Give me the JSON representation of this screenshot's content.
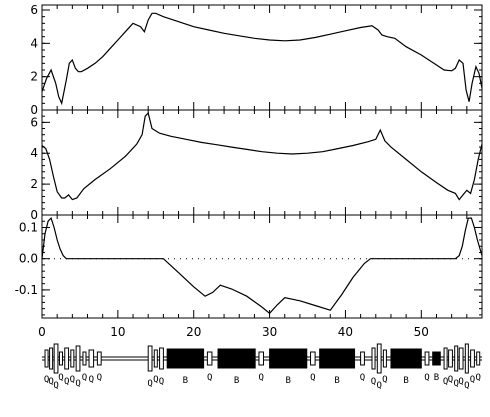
{
  "chart_data": [
    {
      "type": "line",
      "panel": "top",
      "x_range": [
        0,
        58
      ],
      "ylim": [
        0,
        6.3
      ],
      "y_ticks": [
        "0",
        "2",
        "4",
        "6"
      ],
      "series": [
        {
          "x": [
            0,
            0.6,
            1.2,
            1.8,
            2.2,
            2.6,
            3.2,
            3.6,
            4.0,
            4.4,
            4.8,
            5.2,
            6,
            7,
            8,
            9,
            10,
            11,
            12,
            13,
            13.5,
            14,
            14.5,
            15,
            16,
            18,
            20,
            22,
            24,
            26,
            28,
            30,
            32,
            34,
            36,
            38,
            40,
            42,
            43.5,
            44.3,
            44.8,
            45.5,
            46.5,
            48,
            50,
            52,
            53,
            54,
            54.5,
            55,
            55.5,
            55.9,
            56.3,
            56.7,
            57.2,
            57.6,
            58
          ],
          "y": [
            1.1,
            1.9,
            2.4,
            1.6,
            0.8,
            0.4,
            1.8,
            2.8,
            3.0,
            2.5,
            2.3,
            2.3,
            2.5,
            2.8,
            3.2,
            3.7,
            4.2,
            4.7,
            5.2,
            5.0,
            4.7,
            5.4,
            5.8,
            5.8,
            5.6,
            5.3,
            5.0,
            4.8,
            4.6,
            4.45,
            4.3,
            4.2,
            4.15,
            4.2,
            4.35,
            4.55,
            4.75,
            4.95,
            5.05,
            4.8,
            4.5,
            4.4,
            4.3,
            3.8,
            3.3,
            2.7,
            2.4,
            2.35,
            2.5,
            3.0,
            2.8,
            1.2,
            0.5,
            1.6,
            2.6,
            2.2,
            1.3
          ]
        }
      ]
    },
    {
      "type": "line",
      "panel": "middle",
      "x_range": [
        0,
        58
      ],
      "ylim": [
        0,
        6.8
      ],
      "y_ticks": [
        "0",
        "2",
        "4",
        "6"
      ],
      "series": [
        {
          "x": [
            0,
            0.5,
            1.0,
            1.5,
            2.0,
            2.6,
            3.0,
            3.5,
            4.0,
            4.6,
            5.5,
            7,
            9,
            11,
            12.5,
            13.2,
            13.6,
            14.0,
            14.5,
            15.5,
            17,
            19,
            21,
            23,
            25,
            27,
            29,
            31,
            33,
            35,
            37,
            39,
            41,
            43,
            44,
            44.6,
            45.2,
            46,
            48,
            50,
            52,
            53.5,
            54.5,
            55,
            55.5,
            56,
            56.5,
            57,
            57.5,
            58
          ],
          "y": [
            4.5,
            4.3,
            3.6,
            2.5,
            1.5,
            1.1,
            1.1,
            1.3,
            1.0,
            1.1,
            1.7,
            2.3,
            3.0,
            3.8,
            4.6,
            5.2,
            6.4,
            6.6,
            5.6,
            5.3,
            5.1,
            4.9,
            4.7,
            4.55,
            4.4,
            4.25,
            4.1,
            4.0,
            3.95,
            4.0,
            4.1,
            4.3,
            4.5,
            4.75,
            4.9,
            5.5,
            4.8,
            4.4,
            3.6,
            2.8,
            2.1,
            1.6,
            1.4,
            1.0,
            1.3,
            1.6,
            1.4,
            2.3,
            3.6,
            4.6
          ]
        }
      ]
    },
    {
      "type": "line",
      "panel": "bottom",
      "x_range": [
        0,
        58
      ],
      "xlim": [
        0,
        58
      ],
      "ylim": [
        -0.19,
        0.14
      ],
      "y_ticks": [
        "0.1",
        "0.0",
        "-0.1"
      ],
      "x_ticks": [
        "0",
        "10",
        "20",
        "30",
        "40",
        "50"
      ],
      "reference_line": {
        "y": 0.0,
        "style": "dotted"
      },
      "series": [
        {
          "x": [
            0,
            0.4,
            0.8,
            1.2,
            1.6,
            2.0,
            2.4,
            2.8,
            3.2,
            16,
            18,
            20,
            21.5,
            22.5,
            23.5,
            25,
            27,
            29,
            30,
            31,
            32,
            34,
            36,
            38,
            39.5,
            41,
            42.5,
            43.3,
            54.5,
            55,
            55.4,
            55.8,
            56.2,
            56.6,
            57,
            57.4,
            58
          ],
          "y": [
            0.0,
            0.08,
            0.12,
            0.13,
            0.1,
            0.06,
            0.03,
            0.01,
            0.0,
            0.0,
            -0.045,
            -0.09,
            -0.12,
            -0.108,
            -0.085,
            -0.097,
            -0.12,
            -0.155,
            -0.175,
            -0.148,
            -0.125,
            -0.135,
            -0.15,
            -0.165,
            -0.115,
            -0.06,
            -0.015,
            0.0,
            0.0,
            0.01,
            0.04,
            0.09,
            0.13,
            0.13,
            0.1,
            0.06,
            0.01
          ]
        }
      ]
    }
  ],
  "lattice": {
    "elements": [
      {
        "x": 0.4,
        "w": 0.4,
        "h": 10,
        "label": "Q"
      },
      {
        "x": 1.0,
        "w": 0.4,
        "h": 12,
        "label": "Q"
      },
      {
        "x": 1.6,
        "w": 0.5,
        "h": 16,
        "label": "Q"
      },
      {
        "x": 2.3,
        "w": 0.4,
        "h": 8,
        "label": "Q"
      },
      {
        "x": 3.0,
        "w": 0.5,
        "h": 12,
        "label": "Q"
      },
      {
        "x": 3.8,
        "w": 0.4,
        "h": 10,
        "label": "Q"
      },
      {
        "x": 4.5,
        "w": 0.5,
        "h": 14,
        "label": "Q"
      },
      {
        "x": 5.4,
        "w": 0.4,
        "h": 8,
        "label": "Q"
      },
      {
        "x": 6.2,
        "w": 0.6,
        "h": 10,
        "label": "Q"
      },
      {
        "x": 7.3,
        "w": 0.5,
        "h": 8,
        "label": "Q"
      },
      {
        "x": 14.0,
        "w": 0.5,
        "h": 14,
        "label": "Q"
      },
      {
        "x": 14.8,
        "w": 0.4,
        "h": 10,
        "label": "Q"
      },
      {
        "x": 15.5,
        "w": 0.5,
        "h": 12,
        "label": "Q"
      },
      {
        "x": 16.5,
        "w": 4.8,
        "h": 11,
        "label": "B",
        "filled": true
      },
      {
        "x": 21.8,
        "w": 0.6,
        "h": 8,
        "label": "Q"
      },
      {
        "x": 23.2,
        "w": 4.9,
        "h": 11,
        "label": "B",
        "filled": true
      },
      {
        "x": 28.6,
        "w": 0.6,
        "h": 8,
        "label": "Q"
      },
      {
        "x": 30.0,
        "w": 4.9,
        "h": 11,
        "label": "B",
        "filled": true
      },
      {
        "x": 35.4,
        "w": 0.6,
        "h": 8,
        "label": "Q"
      },
      {
        "x": 36.6,
        "w": 4.6,
        "h": 11,
        "label": "B",
        "filled": true
      },
      {
        "x": 42.0,
        "w": 0.5,
        "h": 8,
        "label": "Q"
      },
      {
        "x": 43.5,
        "w": 0.4,
        "h": 12,
        "label": "Q"
      },
      {
        "x": 44.2,
        "w": 0.5,
        "h": 16,
        "label": "Q"
      },
      {
        "x": 45.0,
        "w": 0.4,
        "h": 10,
        "label": "Q"
      },
      {
        "x": 46.0,
        "w": 4.0,
        "h": 11,
        "label": "B",
        "filled": true
      },
      {
        "x": 50.5,
        "w": 0.5,
        "h": 8,
        "label": "Q"
      },
      {
        "x": 51.5,
        "w": 1.0,
        "h": 8,
        "label": "B",
        "filled": true
      },
      {
        "x": 53.0,
        "w": 0.4,
        "h": 12,
        "label": "Q"
      },
      {
        "x": 53.6,
        "w": 0.5,
        "h": 10,
        "label": "Q"
      },
      {
        "x": 54.4,
        "w": 0.4,
        "h": 14,
        "label": "Q"
      },
      {
        "x": 55.0,
        "w": 0.5,
        "h": 12,
        "label": "Q"
      },
      {
        "x": 55.8,
        "w": 0.4,
        "h": 16,
        "label": "Q"
      },
      {
        "x": 56.5,
        "w": 0.5,
        "h": 10,
        "label": "Q"
      },
      {
        "x": 57.3,
        "w": 0.4,
        "h": 8,
        "label": "Q"
      }
    ]
  },
  "colors": {
    "line": "#000000",
    "background": "#ffffff",
    "magnet_fill": "#000000"
  }
}
